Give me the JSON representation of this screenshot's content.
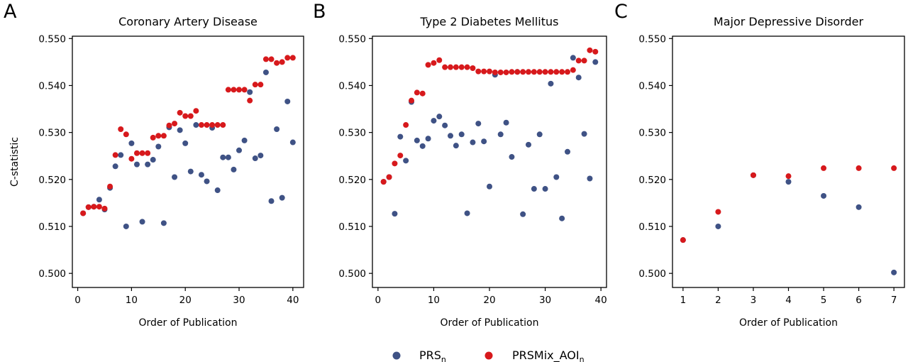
{
  "colors": {
    "prs": "#3f5285",
    "prsmix": "#d7191c"
  },
  "legend": {
    "position": "bottom-center",
    "items": [
      {
        "key": "prs",
        "label": "PRS",
        "subscript": "n"
      },
      {
        "key": "prsmix",
        "label": "PRSMix_AOI",
        "subscript": "n"
      }
    ]
  },
  "chart_data": [
    {
      "panel_letter": "A",
      "type": "scatter",
      "title": "Coronary Artery Disease",
      "xlabel": "Order of Publication",
      "ylabel": "C-statistic",
      "xlim": [
        -1,
        42
      ],
      "ylim": [
        0.497,
        0.5505
      ],
      "xticks": [
        0,
        10,
        20,
        30,
        40
      ],
      "yticks": [
        "0.500",
        "0.510",
        "0.520",
        "0.530",
        "0.540",
        "0.550"
      ],
      "series": [
        {
          "key": "prs",
          "points": [
            [
              1,
              0.5128
            ],
            [
              2,
              0.5141
            ],
            [
              3,
              0.5142
            ],
            [
              4,
              0.5157
            ],
            [
              5,
              0.5136
            ],
            [
              6,
              0.5182
            ],
            [
              7,
              0.5228
            ],
            [
              8,
              0.5252
            ],
            [
              9,
              0.51
            ],
            [
              10,
              0.5277
            ],
            [
              11,
              0.5232
            ],
            [
              12,
              0.511
            ],
            [
              13,
              0.5232
            ],
            [
              14,
              0.5242
            ],
            [
              15,
              0.527
            ],
            [
              16,
              0.5107
            ],
            [
              17,
              0.5311
            ],
            [
              18,
              0.5205
            ],
            [
              19,
              0.5305
            ],
            [
              20,
              0.5277
            ],
            [
              21,
              0.5217
            ],
            [
              22,
              0.5316
            ],
            [
              23,
              0.521
            ],
            [
              24,
              0.5196
            ],
            [
              25,
              0.531
            ],
            [
              26,
              0.5177
            ],
            [
              27,
              0.5247
            ],
            [
              28,
              0.5247
            ],
            [
              29,
              0.5221
            ],
            [
              30,
              0.5262
            ],
            [
              31,
              0.5283
            ],
            [
              32,
              0.5386
            ],
            [
              33,
              0.5245
            ],
            [
              34,
              0.5251
            ],
            [
              35,
              0.5428
            ],
            [
              36,
              0.5154
            ],
            [
              37,
              0.5307
            ],
            [
              38,
              0.5161
            ],
            [
              39,
              0.5366
            ],
            [
              40,
              0.5279
            ]
          ]
        },
        {
          "key": "prsmix",
          "points": [
            [
              1,
              0.5128
            ],
            [
              2,
              0.5141
            ],
            [
              3,
              0.5142
            ],
            [
              4,
              0.5142
            ],
            [
              5,
              0.5138
            ],
            [
              6,
              0.5185
            ],
            [
              7,
              0.5252
            ],
            [
              8,
              0.5307
            ],
            [
              9,
              0.5296
            ],
            [
              10,
              0.5244
            ],
            [
              11,
              0.5256
            ],
            [
              12,
              0.5256
            ],
            [
              13,
              0.5256
            ],
            [
              14,
              0.5289
            ],
            [
              15,
              0.5293
            ],
            [
              16,
              0.5293
            ],
            [
              17,
              0.5315
            ],
            [
              18,
              0.5319
            ],
            [
              19,
              0.5342
            ],
            [
              20,
              0.5335
            ],
            [
              21,
              0.5335
            ],
            [
              22,
              0.5346
            ],
            [
              23,
              0.5316
            ],
            [
              24,
              0.5316
            ],
            [
              25,
              0.5316
            ],
            [
              26,
              0.5316
            ],
            [
              27,
              0.5316
            ],
            [
              28,
              0.5391
            ],
            [
              29,
              0.5391
            ],
            [
              30,
              0.5391
            ],
            [
              31,
              0.5391
            ],
            [
              32,
              0.5368
            ],
            [
              33,
              0.5402
            ],
            [
              34,
              0.5402
            ],
            [
              35,
              0.5456
            ],
            [
              36,
              0.5456
            ],
            [
              37,
              0.5448
            ],
            [
              38,
              0.545
            ],
            [
              39,
              0.5459
            ],
            [
              40,
              0.5459
            ]
          ]
        }
      ]
    },
    {
      "panel_letter": "B",
      "type": "scatter",
      "title": "Type 2 Diabetes Mellitus",
      "xlabel": "Order of Publication",
      "ylabel": "",
      "xlim": [
        -1,
        41
      ],
      "ylim": [
        0.497,
        0.5505
      ],
      "xticks": [
        0,
        10,
        20,
        30,
        40
      ],
      "yticks": [
        "0.500",
        "0.510",
        "0.520",
        "0.530",
        "0.540",
        "0.550"
      ],
      "series": [
        {
          "key": "prs",
          "points": [
            [
              1,
              0.5195
            ],
            [
              2,
              0.5205
            ],
            [
              3,
              0.5127
            ],
            [
              4,
              0.5291
            ],
            [
              5,
              0.524
            ],
            [
              6,
              0.5365
            ],
            [
              7,
              0.5283
            ],
            [
              8,
              0.5271
            ],
            [
              9,
              0.5287
            ],
            [
              10,
              0.5325
            ],
            [
              11,
              0.5334
            ],
            [
              12,
              0.5315
            ],
            [
              13,
              0.5293
            ],
            [
              14,
              0.5272
            ],
            [
              15,
              0.5296
            ],
            [
              16,
              0.5128
            ],
            [
              17,
              0.5279
            ],
            [
              18,
              0.5319
            ],
            [
              19,
              0.5281
            ],
            [
              20,
              0.5185
            ],
            [
              21,
              0.5423
            ],
            [
              22,
              0.5296
            ],
            [
              23,
              0.5321
            ],
            [
              24,
              0.5248
            ],
            [
              25,
              0.5429
            ],
            [
              26,
              0.5126
            ],
            [
              27,
              0.5274
            ],
            [
              28,
              0.518
            ],
            [
              29,
              0.5296
            ],
            [
              30,
              0.518
            ],
            [
              31,
              0.5404
            ],
            [
              32,
              0.5205
            ],
            [
              33,
              0.5117
            ],
            [
              34,
              0.5259
            ],
            [
              35,
              0.5459
            ],
            [
              36,
              0.5417
            ],
            [
              37,
              0.5297
            ],
            [
              38,
              0.5202
            ],
            [
              39,
              0.545
            ]
          ]
        },
        {
          "key": "prsmix",
          "points": [
            [
              1,
              0.5195
            ],
            [
              2,
              0.5205
            ],
            [
              3,
              0.5234
            ],
            [
              4,
              0.5251
            ],
            [
              5,
              0.5316
            ],
            [
              6,
              0.5368
            ],
            [
              7,
              0.5385
            ],
            [
              8,
              0.5383
            ],
            [
              9,
              0.5444
            ],
            [
              10,
              0.5448
            ],
            [
              11,
              0.5454
            ],
            [
              12,
              0.5439
            ],
            [
              13,
              0.5439
            ],
            [
              14,
              0.5439
            ],
            [
              15,
              0.5439
            ],
            [
              16,
              0.5439
            ],
            [
              17,
              0.5437
            ],
            [
              18,
              0.543
            ],
            [
              19,
              0.543
            ],
            [
              20,
              0.543
            ],
            [
              21,
              0.5428
            ],
            [
              22,
              0.5428
            ],
            [
              23,
              0.5428
            ],
            [
              24,
              0.5429
            ],
            [
              25,
              0.5429
            ],
            [
              26,
              0.5429
            ],
            [
              27,
              0.5429
            ],
            [
              28,
              0.5429
            ],
            [
              29,
              0.5429
            ],
            [
              30,
              0.5429
            ],
            [
              31,
              0.5429
            ],
            [
              32,
              0.5429
            ],
            [
              33,
              0.5429
            ],
            [
              34,
              0.5429
            ],
            [
              35,
              0.5433
            ],
            [
              36,
              0.5453
            ],
            [
              37,
              0.5453
            ],
            [
              38,
              0.5475
            ],
            [
              39,
              0.5472
            ]
          ]
        }
      ]
    },
    {
      "panel_letter": "C",
      "type": "scatter",
      "title": "Major Depressive Disorder",
      "xlabel": "Order of Publication",
      "ylabel": "",
      "xlim": [
        0.7,
        7.3
      ],
      "ylim": [
        0.497,
        0.5505
      ],
      "xticks": [
        1,
        2,
        3,
        4,
        5,
        6,
        7
      ],
      "yticks": [
        "0.500",
        "0.510",
        "0.520",
        "0.530",
        "0.540",
        "0.550"
      ],
      "series": [
        {
          "key": "prs",
          "points": [
            [
              1,
              0.5071
            ],
            [
              2,
              0.51
            ],
            [
              3,
              0.5209
            ],
            [
              4,
              0.5195
            ],
            [
              5,
              0.5165
            ],
            [
              6,
              0.5141
            ],
            [
              7,
              0.5002
            ]
          ]
        },
        {
          "key": "prsmix",
          "points": [
            [
              1,
              0.5071
            ],
            [
              2,
              0.5131
            ],
            [
              3,
              0.5209
            ],
            [
              4,
              0.5207
            ],
            [
              5,
              0.5224
            ],
            [
              6,
              0.5224
            ],
            [
              7,
              0.5224
            ]
          ]
        }
      ]
    }
  ]
}
